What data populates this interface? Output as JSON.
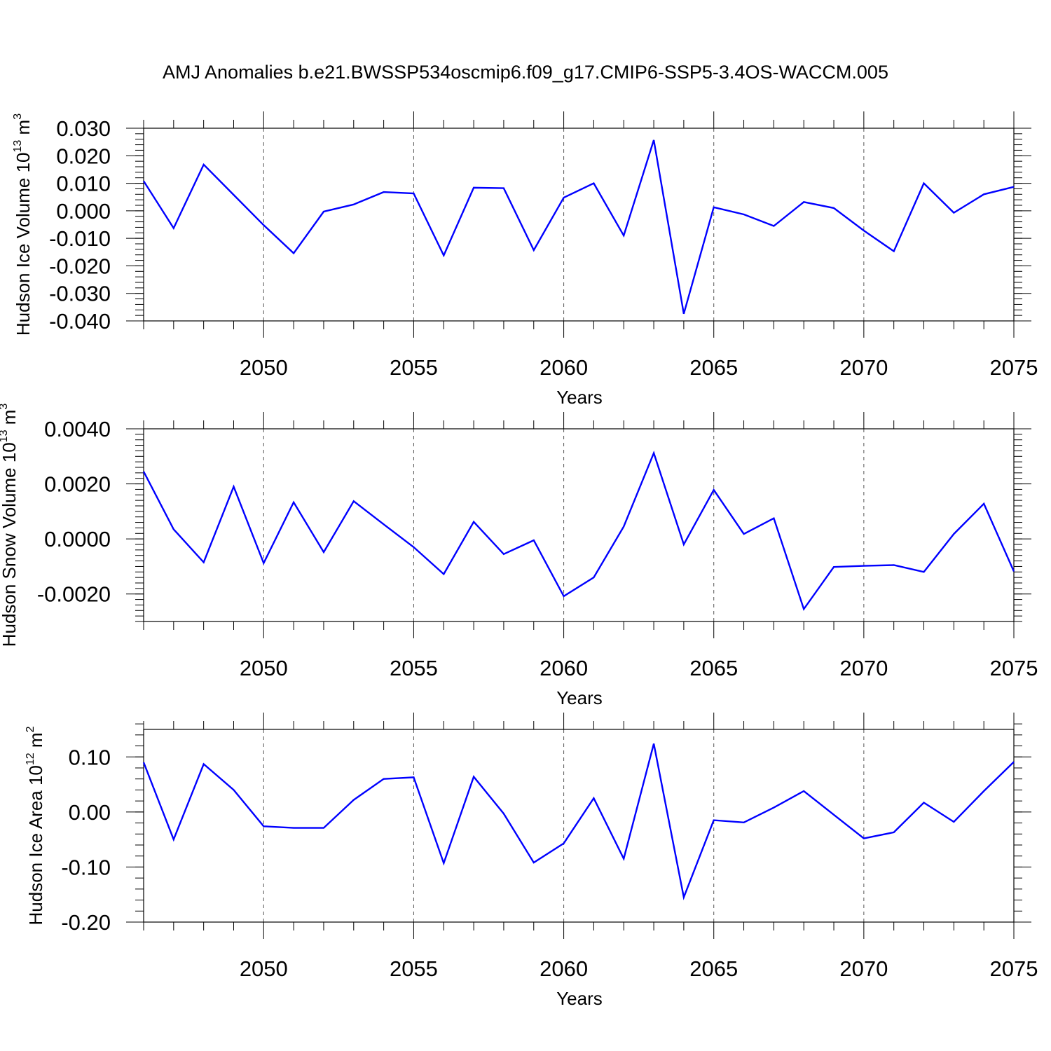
{
  "title": "AMJ Anomalies b.e21.BWSSP534oscmip6.f09_g17.CMIP6-SSP5-3.4OS-WACCM.005",
  "chart_data": [
    {
      "type": "line",
      "ylabel": "Hudson Ice Volume 10",
      "ylabel_sup": "13",
      "ylabel_unit": "m",
      "ylabel_unit_sup": "3",
      "xlabel": "Years",
      "xlim": [
        2046,
        2075
      ],
      "ylim": [
        -0.04,
        0.03
      ],
      "xticks": [
        2050,
        2055,
        2060,
        2065,
        2070,
        2075
      ],
      "xtick_labels": [
        "2050",
        "2055",
        "2060",
        "2065",
        "2070",
        "2075"
      ],
      "yticks": [
        -0.04,
        -0.03,
        -0.02,
        -0.01,
        0.0,
        0.01,
        0.02,
        0.03
      ],
      "ytick_labels": [
        "-0.040",
        "-0.030",
        "-0.020",
        "-0.010",
        "0.000",
        "0.010",
        "0.020",
        "0.030"
      ],
      "yminor": 0.002,
      "grid": "vertical-dashed",
      "line_color": "#0000ff",
      "x": [
        2046,
        2047,
        2048,
        2049,
        2050,
        2051,
        2052,
        2053,
        2054,
        2055,
        2056,
        2057,
        2058,
        2059,
        2060,
        2061,
        2062,
        2063,
        2064,
        2065,
        2066,
        2067,
        2068,
        2069,
        2070,
        2071,
        2072,
        2073,
        2074,
        2075
      ],
      "values": [
        0.0108,
        -0.0063,
        0.0168,
        0.0058,
        -0.0052,
        -0.0154,
        -0.0003,
        0.0023,
        0.0068,
        0.0063,
        -0.0162,
        0.0084,
        0.0082,
        -0.0143,
        0.0048,
        0.01,
        -0.009,
        0.0257,
        -0.0374,
        0.0013,
        -0.0013,
        -0.0055,
        0.0032,
        0.001,
        -0.0072,
        -0.0147,
        0.01,
        -0.0007,
        0.006,
        0.0087
      ]
    },
    {
      "type": "line",
      "ylabel": "Hudson Snow Volume 10",
      "ylabel_sup": "13",
      "ylabel_unit": "m",
      "ylabel_unit_sup": "3",
      "xlabel": "Years",
      "xlim": [
        2046,
        2075
      ],
      "ylim": [
        -0.003,
        0.004
      ],
      "xticks": [
        2050,
        2055,
        2060,
        2065,
        2070,
        2075
      ],
      "xtick_labels": [
        "2050",
        "2055",
        "2060",
        "2065",
        "2070",
        "2075"
      ],
      "yticks": [
        -0.002,
        0.0,
        0.002,
        0.004
      ],
      "ytick_labels": [
        "-0.0020",
        "0.0000",
        "0.0020",
        "0.0040"
      ],
      "yminor": 0.0002,
      "grid": "vertical-dashed",
      "line_color": "#0000ff",
      "x": [
        2046,
        2047,
        2048,
        2049,
        2050,
        2051,
        2052,
        2053,
        2054,
        2055,
        2056,
        2057,
        2058,
        2059,
        2060,
        2061,
        2062,
        2063,
        2064,
        2065,
        2066,
        2067,
        2068,
        2069,
        2070,
        2071,
        2072,
        2073,
        2074,
        2075
      ],
      "values": [
        0.00245,
        0.00035,
        -0.00085,
        0.0019,
        -0.00088,
        0.00133,
        -0.00048,
        0.00137,
        0.00053,
        -0.0003,
        -0.00128,
        0.00062,
        -0.00055,
        -5e-05,
        -0.00208,
        -0.0014,
        0.00045,
        0.00312,
        -0.0002,
        0.00178,
        0.00018,
        0.00075,
        -0.00255,
        -0.00102,
        -0.00098,
        -0.00095,
        -0.0012,
        0.00018,
        0.00128,
        -0.00118
      ]
    },
    {
      "type": "line",
      "ylabel": "Hudson Ice Area 10",
      "ylabel_sup": "12",
      "ylabel_unit": "m",
      "ylabel_unit_sup": "2",
      "xlabel": "Years",
      "xlim": [
        2046,
        2075
      ],
      "ylim": [
        -0.2,
        0.15
      ],
      "xticks": [
        2050,
        2055,
        2060,
        2065,
        2070,
        2075
      ],
      "xtick_labels": [
        "2050",
        "2055",
        "2060",
        "2065",
        "2070",
        "2075"
      ],
      "yticks": [
        -0.2,
        -0.1,
        0.0,
        0.1
      ],
      "ytick_labels": [
        "-0.20",
        "-0.10",
        "0.00",
        "0.10"
      ],
      "yminor": 0.02,
      "grid": "vertical-dashed",
      "line_color": "#0000ff",
      "x": [
        2046,
        2047,
        2048,
        2049,
        2050,
        2051,
        2052,
        2053,
        2054,
        2055,
        2056,
        2057,
        2058,
        2059,
        2060,
        2061,
        2062,
        2063,
        2064,
        2065,
        2066,
        2067,
        2068,
        2069,
        2070,
        2071,
        2072,
        2073,
        2074,
        2075
      ],
      "values": [
        0.09,
        -0.05,
        0.087,
        0.04,
        -0.026,
        -0.029,
        -0.029,
        0.022,
        0.06,
        0.063,
        -0.093,
        0.064,
        -0.003,
        -0.092,
        -0.057,
        0.025,
        -0.085,
        0.124,
        -0.155,
        -0.015,
        -0.019,
        0.008,
        0.038,
        -0.005,
        -0.048,
        -0.037,
        0.017,
        -0.018,
        0.038,
        0.091
      ]
    }
  ]
}
